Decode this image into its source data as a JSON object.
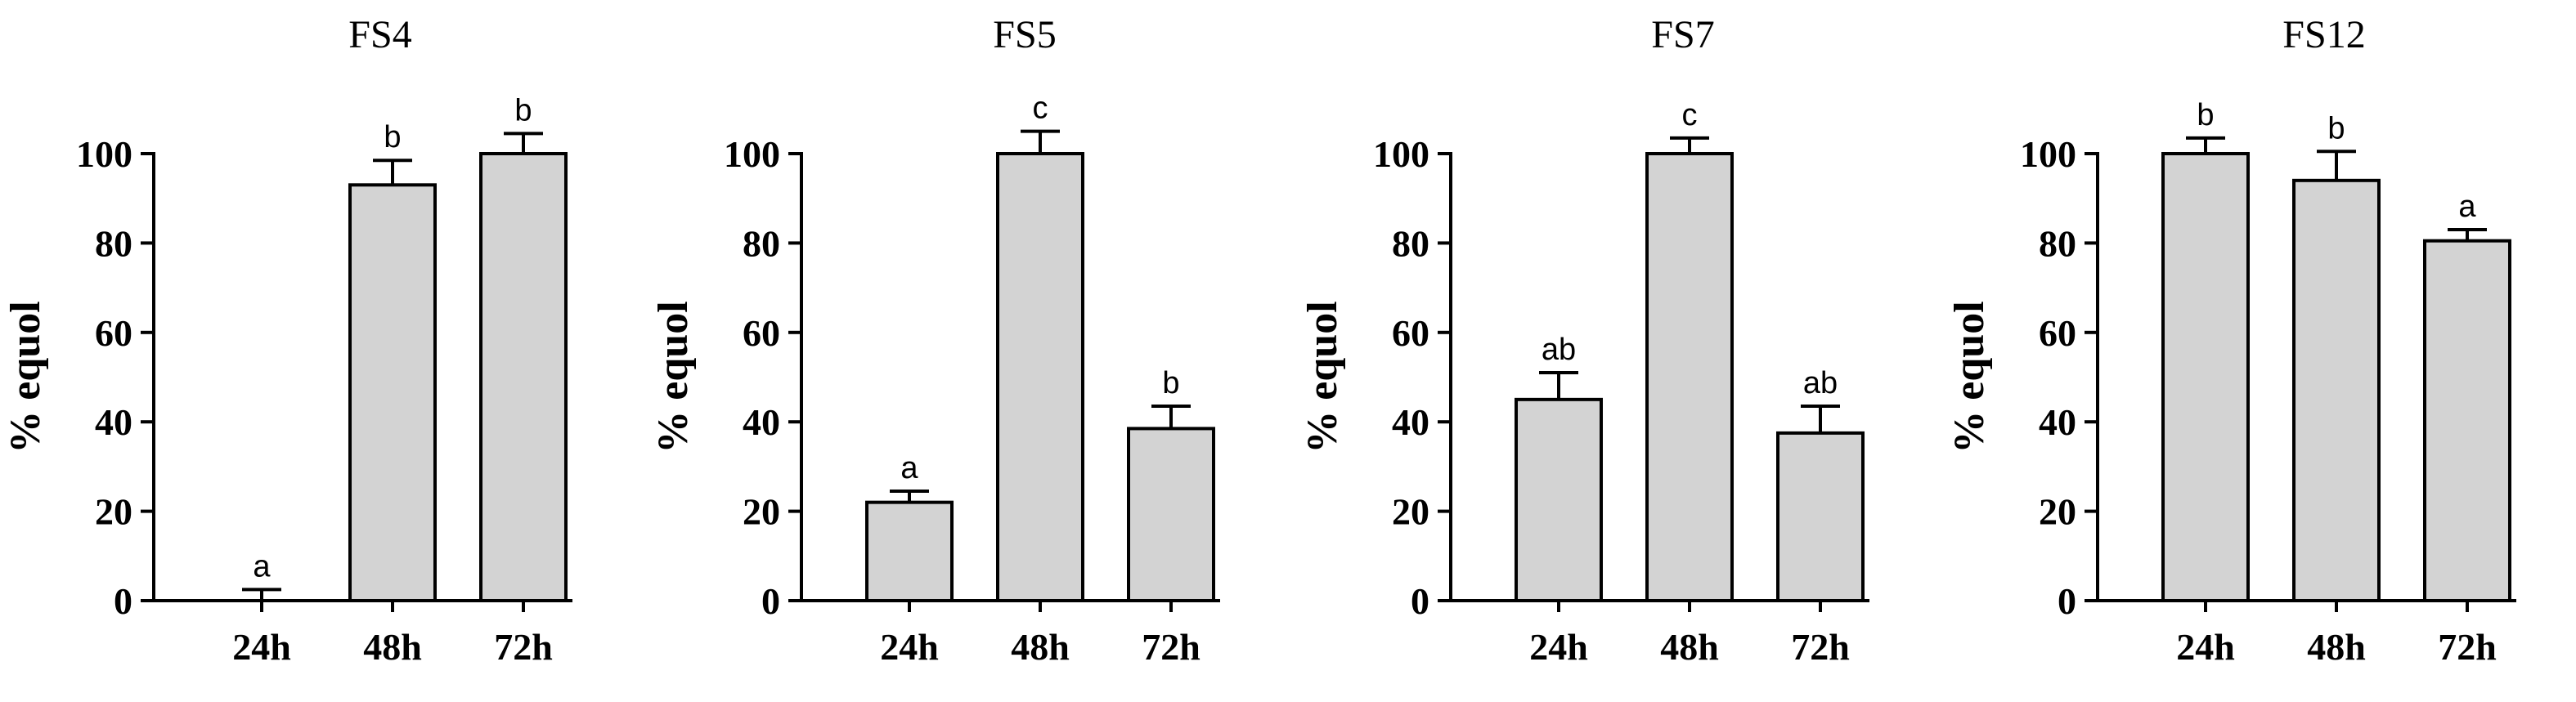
{
  "chart_data": [
    {
      "type": "bar",
      "title": "FS4",
      "ylabel": "% equol",
      "categories": [
        "24h",
        "48h",
        "72h"
      ],
      "values": [
        0,
        93,
        100
      ],
      "errors": [
        2.5,
        5.5,
        4.5
      ],
      "significance": [
        "a",
        "b",
        "b"
      ],
      "ylim": [
        0,
        100
      ],
      "yticks": [
        0,
        20,
        40,
        60,
        80,
        100
      ]
    },
    {
      "type": "bar",
      "title": "FS5",
      "ylabel": "% equol",
      "categories": [
        "24h",
        "48h",
        "72h"
      ],
      "values": [
        22,
        100,
        38.5
      ],
      "errors": [
        2.5,
        5,
        5
      ],
      "significance": [
        "a",
        "c",
        "b"
      ],
      "ylim": [
        0,
        100
      ],
      "yticks": [
        0,
        20,
        40,
        60,
        80,
        100
      ]
    },
    {
      "type": "bar",
      "title": "FS7",
      "ylabel": "% equol",
      "categories": [
        "24h",
        "48h",
        "72h"
      ],
      "values": [
        45,
        100,
        37.5
      ],
      "errors": [
        6,
        3.5,
        6
      ],
      "significance": [
        "ab",
        "c",
        "ab"
      ],
      "ylim": [
        0,
        100
      ],
      "yticks": [
        0,
        20,
        40,
        60,
        80,
        100
      ]
    },
    {
      "type": "bar",
      "title": "FS12",
      "ylabel": "% equol",
      "categories": [
        "24h",
        "48h",
        "72h"
      ],
      "values": [
        100,
        94,
        80.5
      ],
      "errors": [
        3.5,
        6.5,
        2.5
      ],
      "significance": [
        "b",
        "b",
        "a"
      ],
      "ylim": [
        0,
        100
      ],
      "yticks": [
        0,
        20,
        40,
        60,
        80,
        100
      ]
    }
  ],
  "style": {
    "bar_fill": "#d3d3d3",
    "bar_stroke": "#000000",
    "axis_color": "#000000"
  }
}
